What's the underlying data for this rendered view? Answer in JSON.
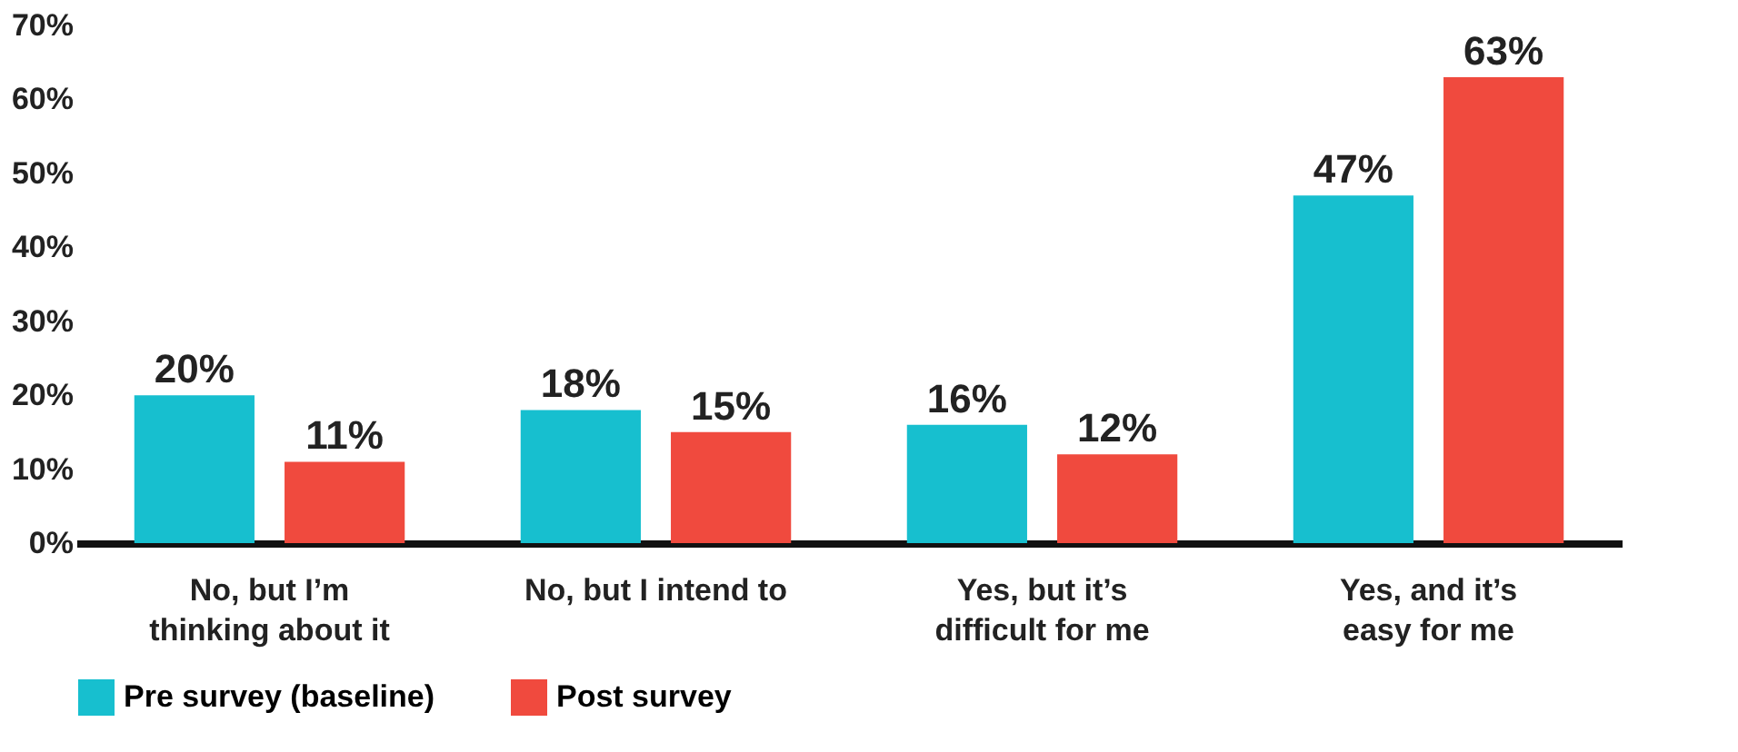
{
  "chart_data": {
    "type": "bar",
    "categories": [
      "No, but I’m\nthinking about it",
      "No, but I intend to",
      "Yes, but it’s\ndifficult for me",
      "Yes, and it’s\neasy for me"
    ],
    "series": [
      {
        "name": "Pre survey (baseline)",
        "color": "#17bfcf",
        "values": [
          20,
          18,
          16,
          47
        ],
        "value_labels": [
          "20%",
          "18%",
          "16%",
          "47%"
        ]
      },
      {
        "name": "Post survey",
        "color": "#f04a3e",
        "values": [
          11,
          15,
          12,
          63
        ],
        "value_labels": [
          "11%",
          "15%",
          "12%",
          "63%"
        ]
      }
    ],
    "ylim": [
      0,
      70
    ],
    "yticks": [
      {
        "value": 0,
        "label": "0%"
      },
      {
        "value": 10,
        "label": "10%"
      },
      {
        "value": 20,
        "label": "20%"
      },
      {
        "value": 30,
        "label": "30%"
      },
      {
        "value": 40,
        "label": "40%"
      },
      {
        "value": 50,
        "label": "50%"
      },
      {
        "value": 60,
        "label": "60%"
      },
      {
        "value": 70,
        "label": "70%"
      }
    ],
    "grid": false,
    "legend": "bottom"
  }
}
